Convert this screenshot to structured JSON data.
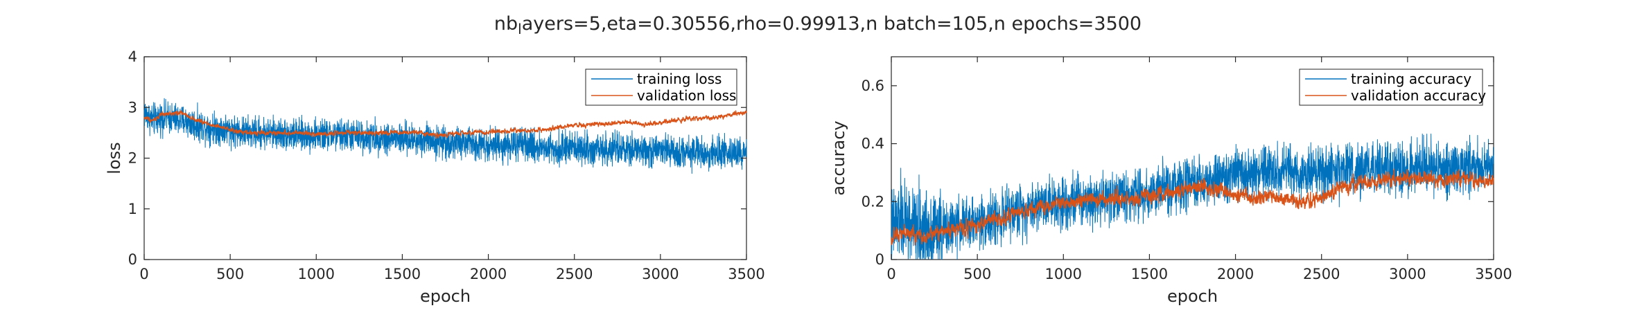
{
  "figure": {
    "title_main": "nb",
    "title_sub": "l",
    "title_rest": "ayers=5,eta=0.30556,rho=0.99913,n batch=105,n epochs=3500"
  },
  "colors": {
    "blue": "#0072BD",
    "orange": "#D95319",
    "axis": "#262626"
  },
  "chart_data": [
    {
      "type": "line",
      "xlabel": "epoch",
      "ylabel": "loss",
      "xlim": [
        0,
        3500
      ],
      "ylim": [
        0,
        4
      ],
      "xticks": [
        "0",
        "500",
        "1000",
        "1500",
        "2000",
        "2500",
        "3000",
        "3500"
      ],
      "yticks": [
        "0",
        "1",
        "2",
        "3",
        "4"
      ],
      "legend_position": "top-right",
      "series": [
        {
          "name": "training loss",
          "color": "#0072BD",
          "x": [
            0,
            50,
            100,
            150,
            200,
            250,
            300,
            400,
            500,
            600,
            700,
            800,
            900,
            1000,
            1100,
            1200,
            1300,
            1400,
            1500,
            1600,
            1650,
            1700,
            1800,
            1900,
            2000,
            2100,
            2200,
            2300,
            2400,
            2500,
            2600,
            2700,
            2800,
            2900,
            3000,
            3100,
            3200,
            3300,
            3400,
            3500
          ],
          "y": [
            2.9,
            2.75,
            2.8,
            2.8,
            2.75,
            2.72,
            2.65,
            2.6,
            2.55,
            2.5,
            2.5,
            2.48,
            2.45,
            2.45,
            2.45,
            2.45,
            2.42,
            2.4,
            2.38,
            2.35,
            2.4,
            2.33,
            2.3,
            2.3,
            2.28,
            2.25,
            2.25,
            2.22,
            2.2,
            2.2,
            2.18,
            2.17,
            2.15,
            2.15,
            2.13,
            2.12,
            2.12,
            2.1,
            2.1,
            2.1
          ],
          "noise": 0.28
        },
        {
          "name": "validation loss",
          "color": "#D95319",
          "x": [
            0,
            50,
            100,
            200,
            250,
            300,
            400,
            500,
            600,
            800,
            1000,
            1200,
            1400,
            1600,
            1700,
            1800,
            2000,
            2200,
            2300,
            2400,
            2500,
            2700,
            2800,
            2900,
            3000,
            3100,
            3200,
            3300,
            3400,
            3500
          ],
          "y": [
            2.8,
            2.75,
            2.85,
            2.9,
            2.85,
            2.75,
            2.65,
            2.55,
            2.5,
            2.5,
            2.48,
            2.5,
            2.5,
            2.5,
            2.45,
            2.48,
            2.52,
            2.55,
            2.55,
            2.6,
            2.65,
            2.68,
            2.72,
            2.65,
            2.7,
            2.75,
            2.78,
            2.8,
            2.85,
            2.9
          ],
          "noise": 0.035
        }
      ]
    },
    {
      "type": "line",
      "xlabel": "epoch",
      "ylabel": "accuracy",
      "xlim": [
        0,
        3500
      ],
      "ylim": [
        0,
        0.7
      ],
      "xticks": [
        "0",
        "500",
        "1000",
        "1500",
        "2000",
        "2500",
        "3000",
        "3500"
      ],
      "yticks": [
        "0",
        "0.2",
        "0.4",
        "0.6"
      ],
      "ytick_values": [
        0,
        0.2,
        0.4,
        0.6
      ],
      "legend_position": "top-right",
      "series": [
        {
          "name": "training accuracy",
          "color": "#0072BD",
          "x": [
            0,
            50,
            100,
            150,
            200,
            250,
            300,
            400,
            500,
            600,
            700,
            800,
            900,
            1000,
            1100,
            1200,
            1300,
            1400,
            1500,
            1600,
            1700,
            1800,
            1900,
            2000,
            2100,
            2200,
            2300,
            2400,
            2500,
            2600,
            2700,
            2800,
            2900,
            3000,
            3100,
            3200,
            3300,
            3400,
            3500
          ],
          "y": [
            0.1,
            0.14,
            0.12,
            0.1,
            0.1,
            0.11,
            0.1,
            0.12,
            0.13,
            0.14,
            0.16,
            0.18,
            0.2,
            0.2,
            0.21,
            0.21,
            0.22,
            0.22,
            0.23,
            0.24,
            0.25,
            0.26,
            0.28,
            0.29,
            0.3,
            0.3,
            0.3,
            0.3,
            0.3,
            0.3,
            0.31,
            0.31,
            0.31,
            0.31,
            0.32,
            0.32,
            0.32,
            0.32,
            0.32
          ],
          "noise": 0.08
        },
        {
          "name": "validation accuracy",
          "color": "#D95319",
          "x": [
            0,
            50,
            100,
            200,
            300,
            400,
            500,
            600,
            700,
            800,
            1000,
            1200,
            1400,
            1500,
            1600,
            1700,
            1800,
            1900,
            2000,
            2050,
            2100,
            2200,
            2300,
            2400,
            2500,
            2600,
            2700,
            2800,
            2900,
            3000,
            3100,
            3200,
            3300,
            3400,
            3500
          ],
          "y": [
            0.07,
            0.1,
            0.09,
            0.08,
            0.1,
            0.11,
            0.12,
            0.14,
            0.15,
            0.17,
            0.2,
            0.21,
            0.21,
            0.22,
            0.23,
            0.24,
            0.25,
            0.24,
            0.22,
            0.23,
            0.21,
            0.22,
            0.21,
            0.2,
            0.21,
            0.25,
            0.26,
            0.27,
            0.27,
            0.28,
            0.28,
            0.28,
            0.28,
            0.27,
            0.28
          ],
          "noise": 0.02
        }
      ]
    }
  ]
}
